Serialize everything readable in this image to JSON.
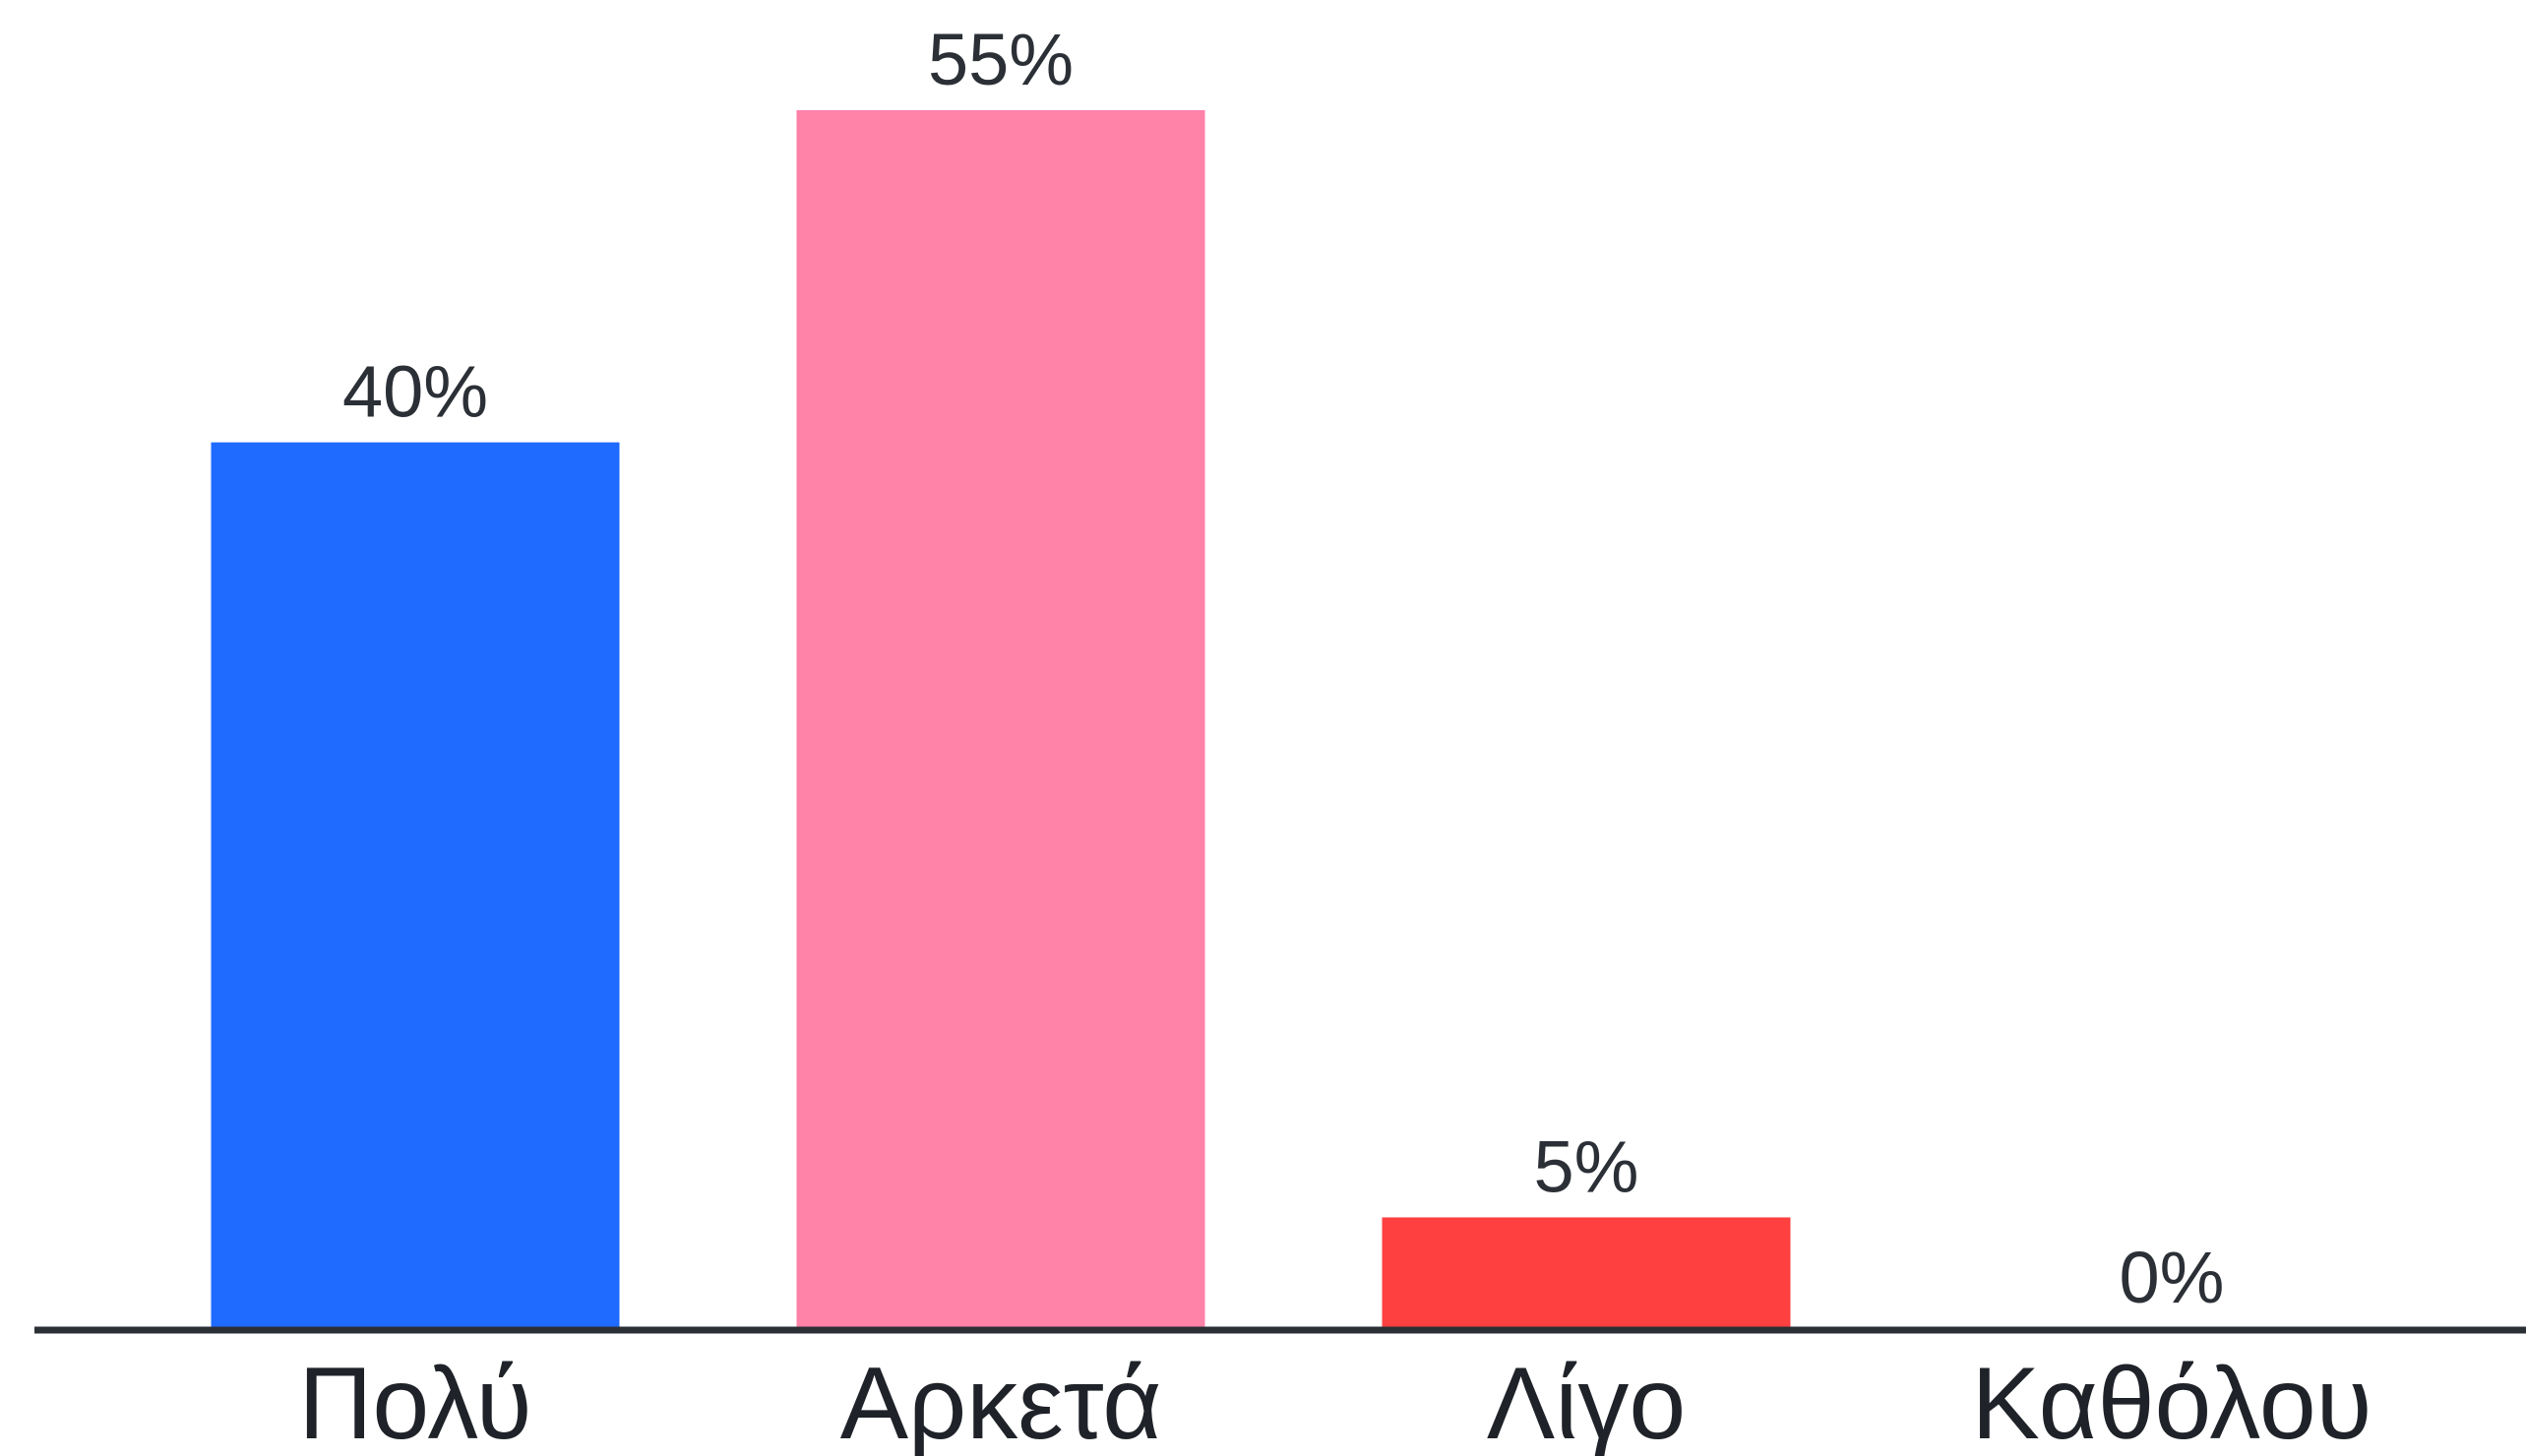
{
  "chart_data": {
    "type": "bar",
    "categories": [
      "Πολύ",
      "Αρκετά",
      "Λίγο",
      "Καθόλου"
    ],
    "values": [
      40,
      55,
      5,
      0
    ],
    "value_labels": [
      "40%",
      "55%",
      "5%",
      "0%"
    ],
    "colors": [
      "#1f6bff",
      "#ff82a9",
      "#ff4040",
      "#9aa0a6"
    ],
    "axis_color": "#2b2f36",
    "title": "",
    "xlabel": "",
    "ylabel": "",
    "ylim": [
      0,
      55
    ],
    "grid": false,
    "legend": "none"
  }
}
